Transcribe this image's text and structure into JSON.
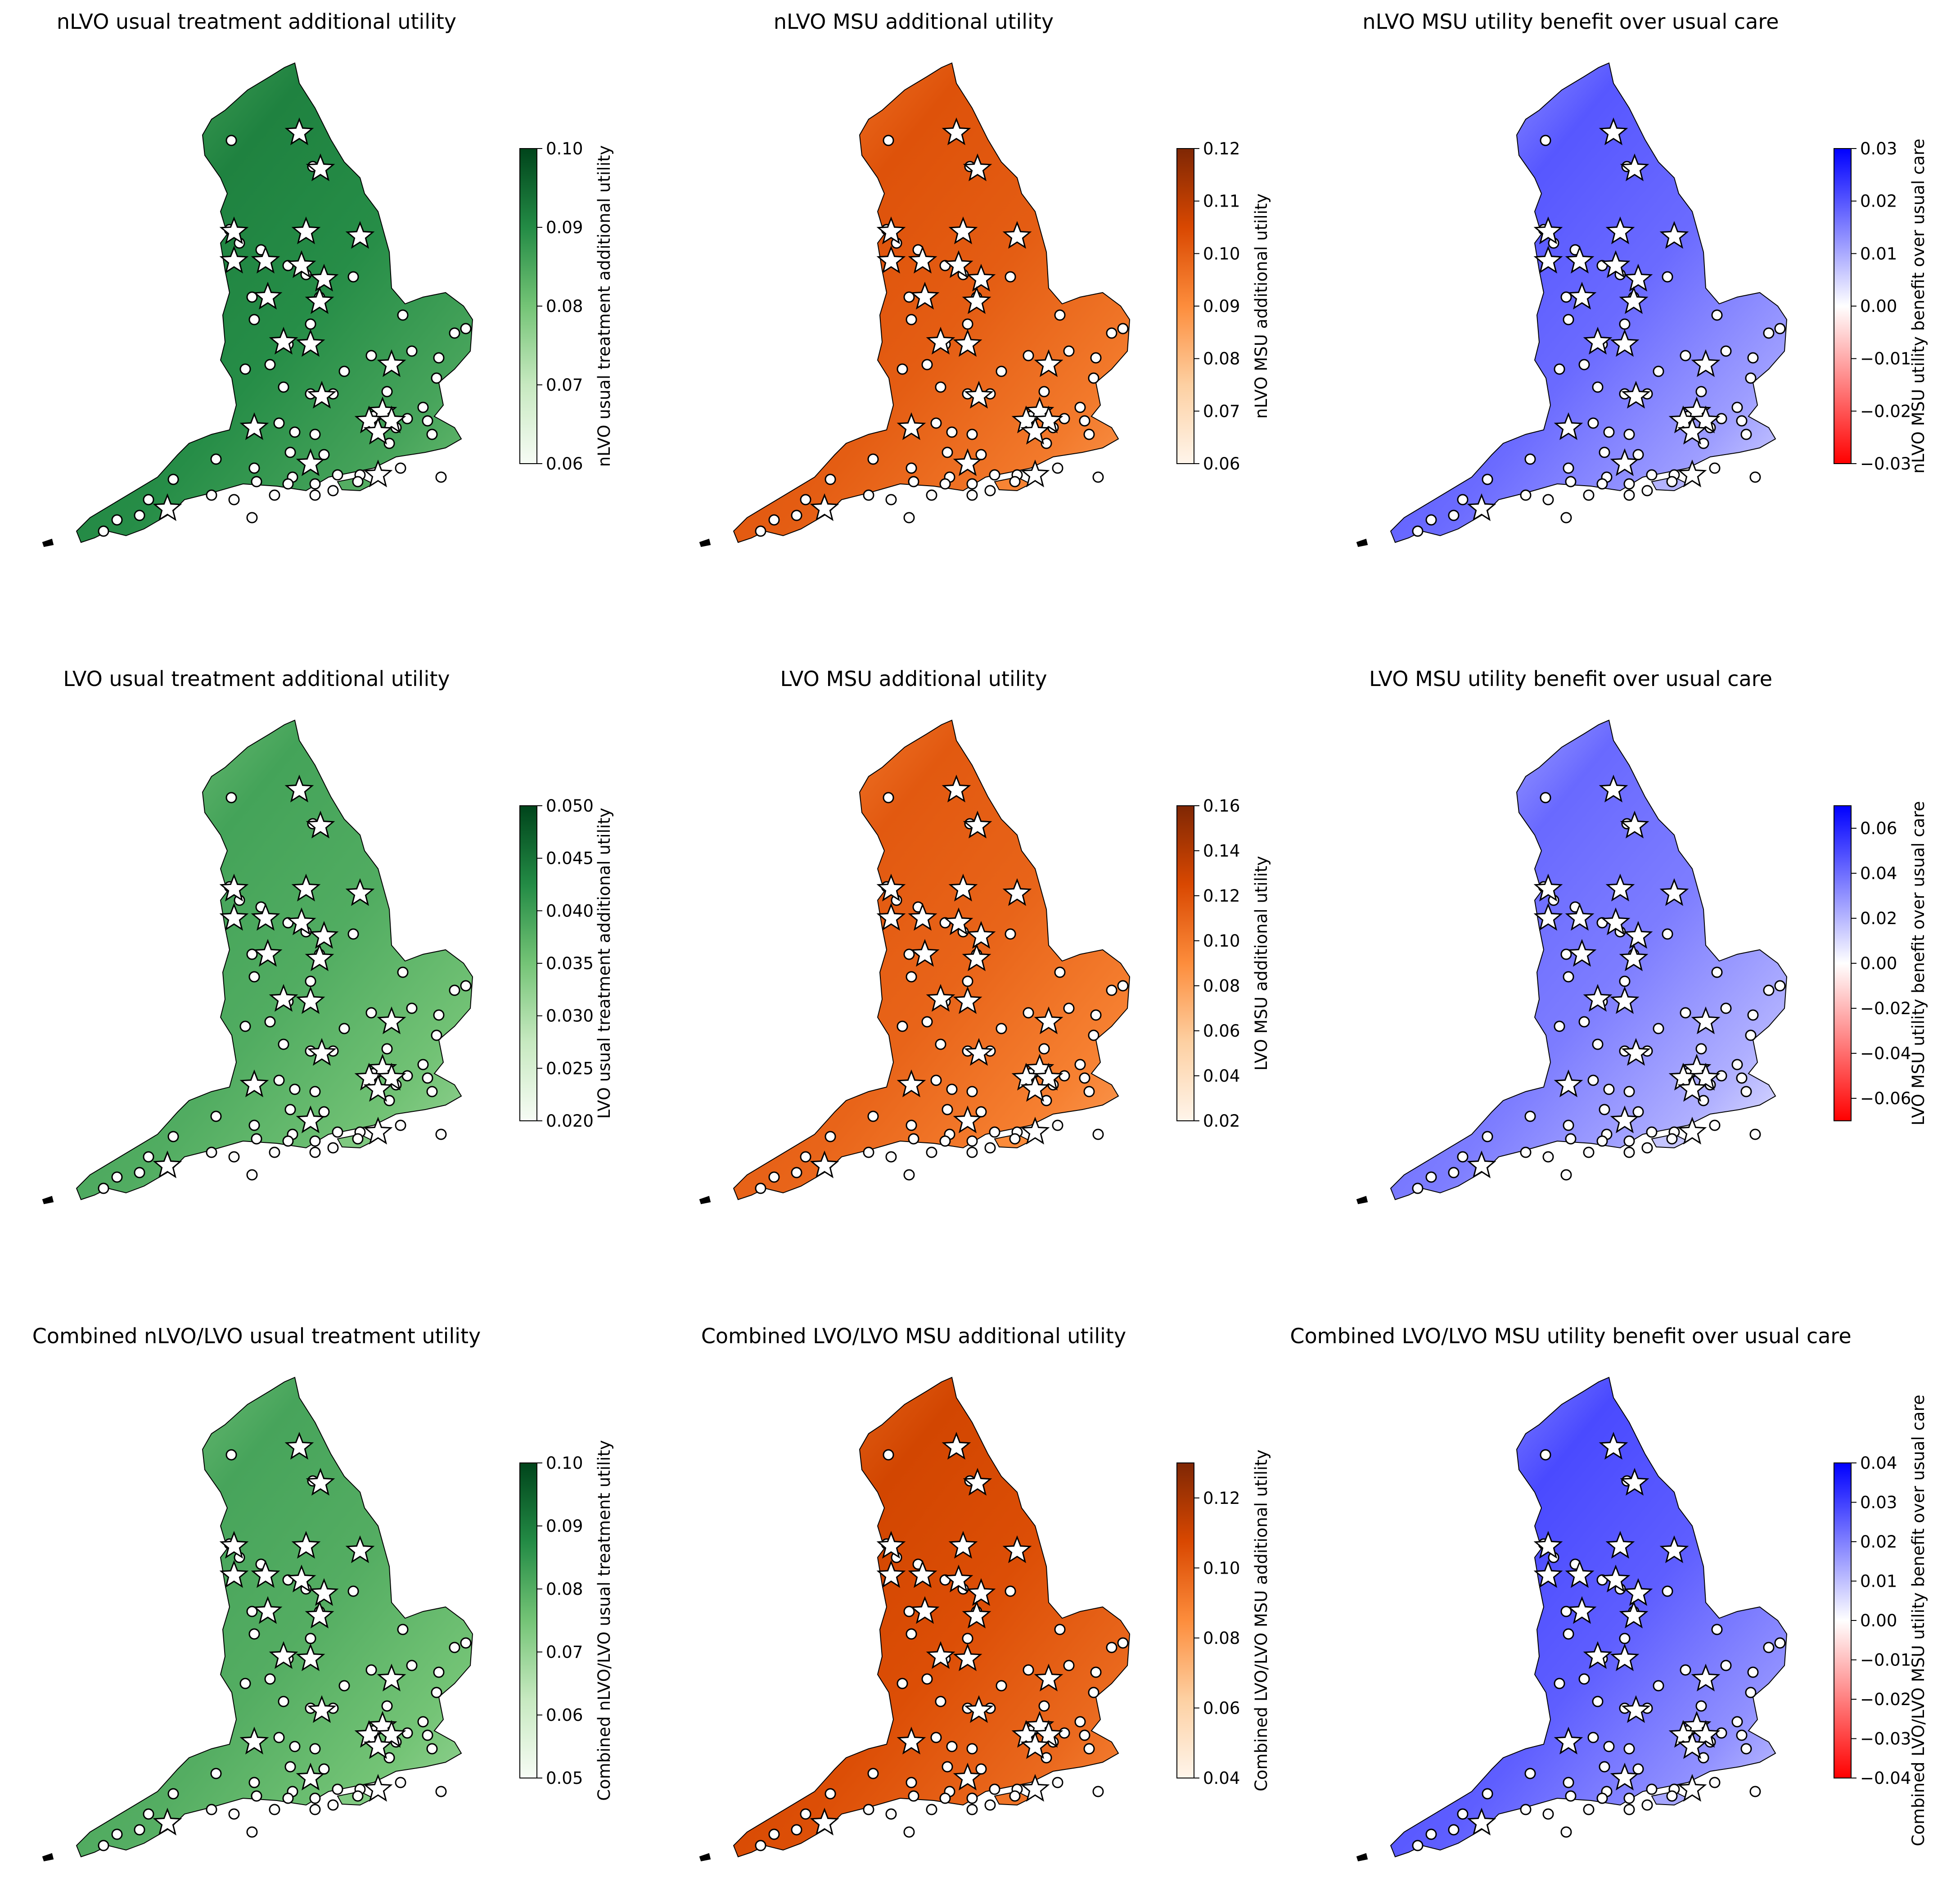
{
  "figure": {
    "layout": "3x3 grid of choropleth maps of England"
  },
  "colormaps": {
    "green": [
      "#f7fcf5",
      "#c7e9c0",
      "#74c476",
      "#238b45",
      "#00441b"
    ],
    "orange": [
      "#fff5eb",
      "#fdd0a2",
      "#fd8d3c",
      "#d94801",
      "#7f2704"
    ],
    "bwr": [
      "#ff0000",
      "#ffffff",
      "#0000ff"
    ]
  },
  "chart_data": [
    {
      "type": "heatmap",
      "map": "England",
      "title": "nLVO usual treatment additional utility",
      "colorbar_label": "nLVO usual treatment additional utility",
      "cmap": "green",
      "vmin": 0.06,
      "vmax": 0.1,
      "ticks": [
        0.06,
        0.07,
        0.08,
        0.09,
        0.1
      ],
      "tick_labels": [
        "0.06",
        "0.07",
        "0.08",
        "0.09",
        "0.10"
      ],
      "typical_value": 0.088
    },
    {
      "type": "heatmap",
      "map": "England",
      "title": "nLVO MSU additional utility",
      "colorbar_label": "nLVO MSU additional utility",
      "cmap": "orange",
      "vmin": 0.06,
      "vmax": 0.12,
      "ticks": [
        0.06,
        0.07,
        0.08,
        0.09,
        0.1,
        0.11,
        0.12
      ],
      "tick_labels": [
        "0.06",
        "0.07",
        "0.08",
        "0.09",
        "0.10",
        "0.11",
        "0.12"
      ],
      "typical_value": 0.098
    },
    {
      "type": "heatmap",
      "map": "England",
      "title": "nLVO MSU utility benefit over usual care",
      "colorbar_label": "nLVO MSU utility benefit over usual care",
      "cmap": "bwr",
      "vmin": -0.03,
      "vmax": 0.03,
      "ticks": [
        -0.03,
        -0.02,
        -0.01,
        0.0,
        0.01,
        0.02,
        0.03
      ],
      "tick_labels": [
        "−0.03",
        "−0.02",
        "−0.01",
        "0.00",
        "0.01",
        "0.02",
        "0.03"
      ],
      "typical_value": 0.015
    },
    {
      "type": "heatmap",
      "map": "England",
      "title": "LVO usual treatment additional utility",
      "colorbar_label": "LVO usual treatment additional utility",
      "cmap": "green",
      "vmin": 0.02,
      "vmax": 0.05,
      "ticks": [
        0.02,
        0.025,
        0.03,
        0.035,
        0.04,
        0.045,
        0.05
      ],
      "tick_labels": [
        "0.020",
        "0.025",
        "0.030",
        "0.035",
        "0.040",
        "0.045",
        "0.050"
      ],
      "typical_value": 0.037
    },
    {
      "type": "heatmap",
      "map": "England",
      "title": "LVO MSU additional utility",
      "colorbar_label": "LVO MSU additional utility",
      "cmap": "orange",
      "vmin": 0.02,
      "vmax": 0.16,
      "ticks": [
        0.02,
        0.04,
        0.06,
        0.08,
        0.1,
        0.12,
        0.14,
        0.16
      ],
      "tick_labels": [
        "0.02",
        "0.04",
        "0.06",
        "0.08",
        "0.10",
        "0.12",
        "0.14",
        "0.16"
      ],
      "typical_value": 0.105
    },
    {
      "type": "heatmap",
      "map": "England",
      "title": "LVO MSU utility benefit over usual care",
      "colorbar_label": "LVO MSU utility benefit over usual care",
      "cmap": "bwr",
      "vmin": -0.07,
      "vmax": 0.07,
      "ticks": [
        -0.06,
        -0.04,
        -0.02,
        0.0,
        0.02,
        0.04,
        0.06
      ],
      "tick_labels": [
        "−0.06",
        "−0.04",
        "−0.02",
        "0.00",
        "0.02",
        "0.04",
        "0.06"
      ],
      "typical_value": 0.03
    },
    {
      "type": "heatmap",
      "map": "England",
      "title": "Combined nLVO/LVO usual treatment utility",
      "colorbar_label": "Combined nLVO/LVO usual treatment utility",
      "cmap": "green",
      "vmin": 0.05,
      "vmax": 0.1,
      "ticks": [
        0.05,
        0.06,
        0.07,
        0.08,
        0.09,
        0.1
      ],
      "tick_labels": [
        "0.05",
        "0.06",
        "0.07",
        "0.08",
        "0.09",
        "0.10"
      ],
      "typical_value": 0.078
    },
    {
      "type": "heatmap",
      "map": "England",
      "title": "Combined LVO/LVO MSU additional utility",
      "colorbar_label": "Combined LVO/LVO MSU additional utility",
      "cmap": "orange",
      "vmin": 0.04,
      "vmax": 0.13,
      "ticks": [
        0.04,
        0.06,
        0.08,
        0.1,
        0.12
      ],
      "tick_labels": [
        "0.04",
        "0.06",
        "0.08",
        "0.10",
        "0.12"
      ],
      "typical_value": 0.102
    },
    {
      "type": "heatmap",
      "map": "England",
      "title": "Combined LVO/LVO MSU utility benefit over usual care",
      "colorbar_label": "Combined LVO/LVO MSU utility benefit over usual care",
      "cmap": "bwr",
      "vmin": -0.04,
      "vmax": 0.04,
      "ticks": [
        -0.04,
        -0.03,
        -0.02,
        -0.01,
        0.0,
        0.01,
        0.02,
        0.03,
        0.04
      ],
      "tick_labels": [
        "−0.04",
        "−0.03",
        "−0.02",
        "−0.01",
        "0.00",
        "0.01",
        "0.02",
        "0.03",
        "0.04"
      ],
      "typical_value": 0.022
    }
  ]
}
